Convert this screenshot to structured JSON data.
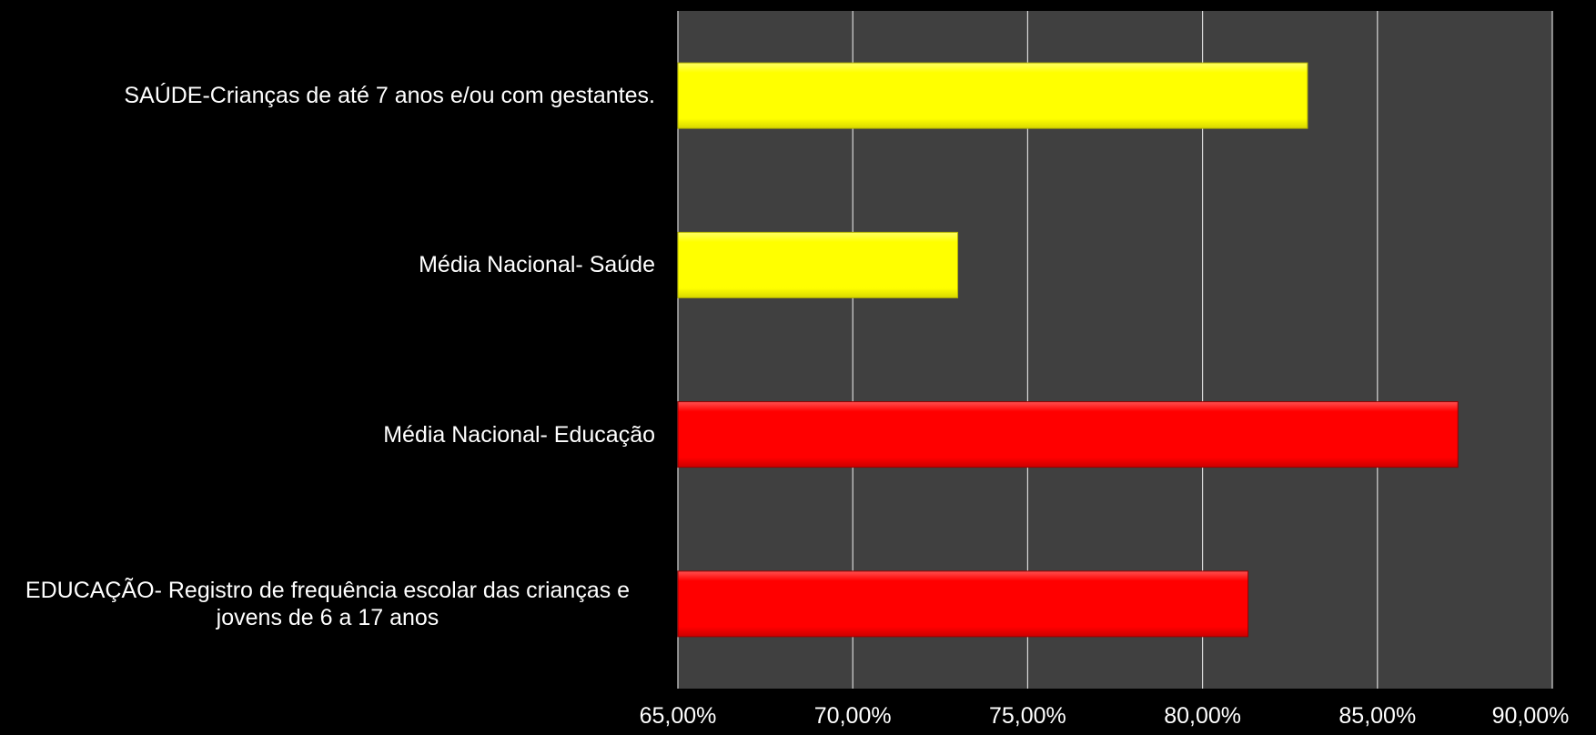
{
  "colors": {
    "background": "#000000",
    "plot_area": "#404040",
    "gridline": "#d9d9d9",
    "axis_text": "#ffffff",
    "health": "#ffff00",
    "education": "#ff0000"
  },
  "chart_data": {
    "type": "bar",
    "orientation": "horizontal",
    "categories": [
      "SAÚDE-Crianças de até 7 anos e/ou com gestantes.",
      "Média Nacional- Saúde",
      "Média Nacional- Educação",
      "EDUCAÇÃO- Registro de frequência escolar das crianças e jovens de 6 a 17 anos"
    ],
    "values": [
      0.83,
      0.73,
      0.873,
      0.813
    ],
    "bar_colors": [
      "#ffff00",
      "#ffff00",
      "#ff0000",
      "#ff0000"
    ],
    "xlim": [
      0.65,
      0.9
    ],
    "ticks": [
      0.65,
      0.7,
      0.75,
      0.8,
      0.85,
      0.9
    ],
    "tick_labels": [
      "65,00%",
      "70,00%",
      "75,00%",
      "80,00%",
      "85,00%",
      "90,00%"
    ],
    "grid": true,
    "legend": "none"
  }
}
